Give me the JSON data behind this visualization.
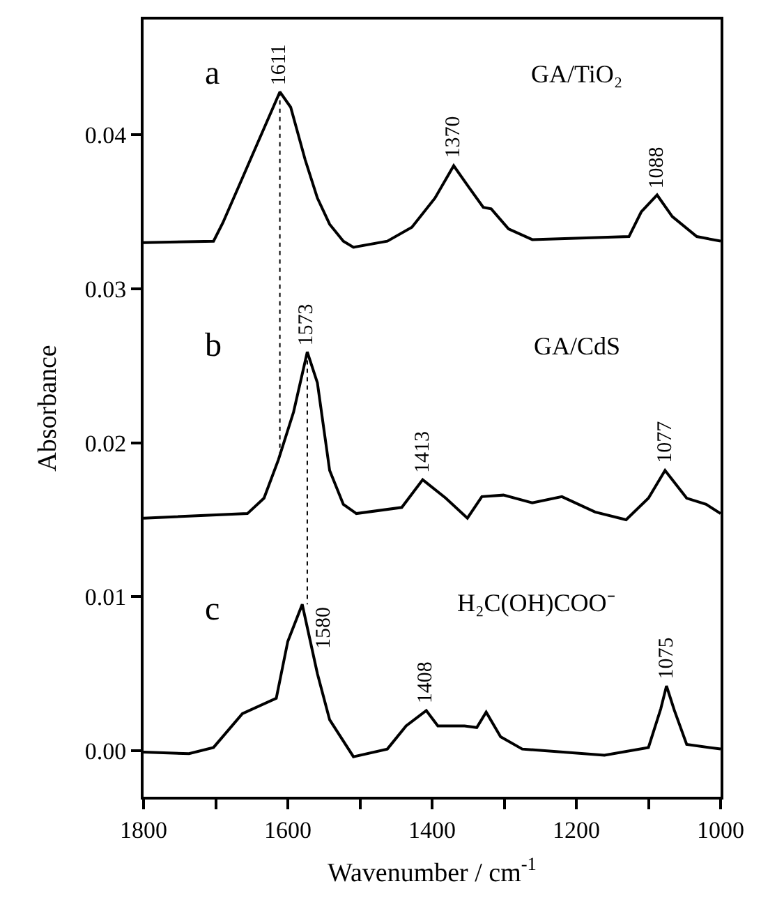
{
  "chart_data": {
    "type": "line",
    "xlabel": "Wavenumber / cm$^{-1}$",
    "ylabel": "Absorbance",
    "xlim": [
      1800,
      1000
    ],
    "xticks": [
      1800,
      {
        "value": 1700,
        "label": null
      },
      1600,
      {
        "value": 1500,
        "label": null
      },
      1400,
      {
        "value": 1300,
        "label": null
      },
      1200,
      {
        "value": 1100,
        "label": null
      },
      1000
    ],
    "ylim": [
      -0.003,
      0.0475
    ],
    "yticks": [
      {
        "value": 0,
        "label": "0.00"
      },
      {
        "value": 0.01,
        "label": "0.01"
      },
      {
        "value": 0.02,
        "label": "0.02"
      },
      {
        "value": 0.03,
        "label": "0.03"
      },
      {
        "value": 0.04,
        "label": "0.04"
      }
    ],
    "marker": "none",
    "series": [
      {
        "color": "#000000",
        "line_style": "solid",
        "x": [
          1800,
          1703,
          1690,
          1663,
          1650,
          1611,
          1596,
          1576,
          1559,
          1542,
          1523,
          1509,
          1462,
          1428,
          1396,
          1370,
          1349,
          1329,
          1318,
          1294,
          1261,
          1127,
          1110,
          1088,
          1067,
          1033,
          1000
        ],
        "values": [
          0.033,
          0.0331,
          0.0343,
          0.0372,
          0.0386,
          0.0428,
          0.0418,
          0.0384,
          0.0359,
          0.0342,
          0.0331,
          0.0327,
          0.0331,
          0.034,
          0.0359,
          0.038,
          0.0366,
          0.0353,
          0.0352,
          0.0339,
          0.0332,
          0.0334,
          0.035,
          0.0361,
          0.0347,
          0.0334,
          0.0331
        ]
      },
      {
        "color": "#000000",
        "line_style": "solid",
        "x": [
          1800,
          1656,
          1633,
          1613,
          1592,
          1573,
          1559,
          1542,
          1523,
          1505,
          1442,
          1413,
          1381,
          1351,
          1331,
          1301,
          1261,
          1220,
          1174,
          1131,
          1100,
          1077,
          1047,
          1020,
          1000
        ],
        "values": [
          0.0151,
          0.0154,
          0.0164,
          0.0189,
          0.022,
          0.0259,
          0.0239,
          0.0182,
          0.016,
          0.0154,
          0.0158,
          0.0176,
          0.0164,
          0.0151,
          0.0165,
          0.0166,
          0.0161,
          0.0165,
          0.0155,
          0.015,
          0.0164,
          0.0182,
          0.0164,
          0.016,
          0.0154
        ]
      },
      {
        "color": "#000000",
        "line_style": "solid",
        "x": [
          1800,
          1737,
          1703,
          1663,
          1616,
          1600,
          1580,
          1559,
          1542,
          1509,
          1462,
          1436,
          1408,
          1392,
          1355,
          1338,
          1325,
          1305,
          1275,
          1161,
          1100,
          1083,
          1075,
          1064,
          1047,
          1000
        ],
        "values": [
          -0.0001,
          -0.0002,
          0.0002,
          0.0024,
          0.0034,
          0.0071,
          0.0095,
          0.005,
          0.002,
          -0.0004,
          0.0001,
          0.0016,
          0.0026,
          0.0016,
          0.0016,
          0.0015,
          0.0025,
          0.0009,
          0.0001,
          -0.0003,
          0.0002,
          0.0027,
          0.0042,
          0.0026,
          0.0004,
          0.0001
        ]
      },
      {
        "color": "#000000",
        "line_style": "dotted",
        "x": [
          1611,
          1611
        ],
        "values": [
          0.0428,
          0.0189
        ]
      },
      {
        "color": "#000000",
        "line_style": "dotted",
        "x": [
          1573,
          1573
        ],
        "values": [
          0.0259,
          0.0095
        ]
      }
    ],
    "annotations": [
      {
        "text": "1611",
        "x": 1611,
        "y": 0.0428
      },
      {
        "text": "1370",
        "x": 1370,
        "y": 0.038
      },
      {
        "text": "1088",
        "x": 1088,
        "y": 0.0361
      },
      {
        "text": "1573",
        "x": 1573,
        "y": 0.0259
      },
      {
        "text": "1413",
        "x": 1413,
        "y": 0.0176
      },
      {
        "text": "1077",
        "x": 1077,
        "y": 0.0182
      },
      {
        "text": "1580",
        "x": 1580,
        "y": 0.0095
      },
      {
        "text": "1408",
        "x": 1408,
        "y": 0.0026
      },
      {
        "text": "1075",
        "x": 1075,
        "y": 0.0042
      },
      "a",
      "GA/TiO₂",
      "b",
      "GA/CdS",
      "c",
      "H₂C(OH)COO⁻"
    ]
  }
}
